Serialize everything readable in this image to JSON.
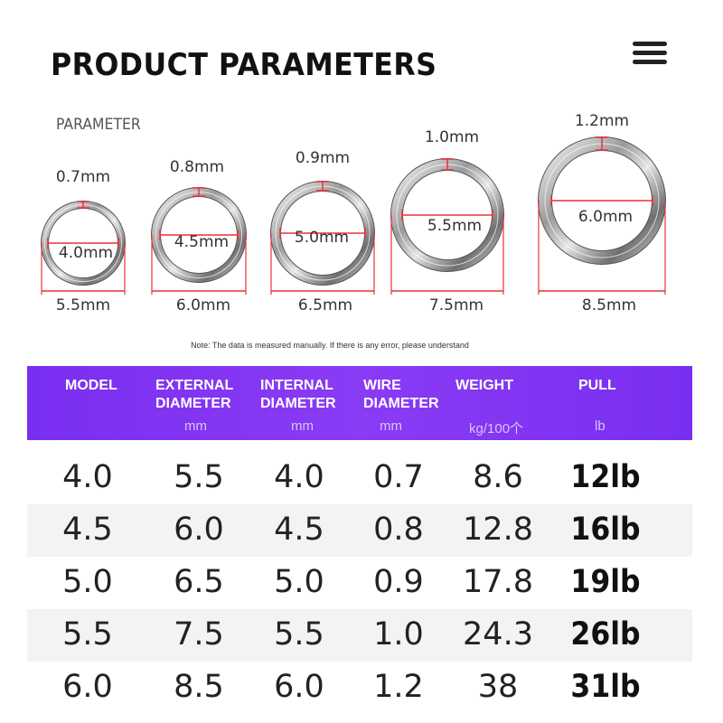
{
  "title": "PRODUCT PARAMETERS",
  "parameter_label": "PARAMETER",
  "note": "Note: The data is measured manually. If there is any error, please understand",
  "rings": [
    {
      "wire": "0.7mm",
      "internal": "4.0mm",
      "external": "5.5mm"
    },
    {
      "wire": "0.8mm",
      "internal": "4.5mm",
      "external": "6.0mm"
    },
    {
      "wire": "0.9mm",
      "internal": "5.0mm",
      "external": "6.5mm"
    },
    {
      "wire": "1.0mm",
      "internal": "5.5mm",
      "external": "7.5mm"
    },
    {
      "wire": "1.2mm",
      "internal": "6.0mm",
      "external": "8.5mm"
    }
  ],
  "table": {
    "headers": [
      "MODEL",
      "EXTERNAL\nDIAMETER",
      "INTERNAL\nDIAMETER",
      "WIRE\nDIAMETER",
      "WEIGHT",
      "PULL"
    ],
    "units": [
      "",
      "mm",
      "mm",
      "mm",
      "kg/100个",
      "lb"
    ],
    "rows": [
      [
        "4.0",
        "5.5",
        "4.0",
        "0.7",
        "8.6",
        "12lb"
      ],
      [
        "4.5",
        "6.0",
        "4.5",
        "0.8",
        "12.8",
        "16lb"
      ],
      [
        "5.0",
        "6.5",
        "5.0",
        "0.9",
        "17.8",
        "19lb"
      ],
      [
        "5.5",
        "7.5",
        "5.5",
        "1.0",
        "24.3",
        "26lb"
      ],
      [
        "6.0",
        "8.5",
        "6.0",
        "1.2",
        "38",
        "31lb"
      ]
    ]
  },
  "colors": {
    "header_bg": "#7a2ef0",
    "dimension_line": "#e8323a"
  },
  "icons": {
    "menu": "hamburger-menu-icon"
  }
}
